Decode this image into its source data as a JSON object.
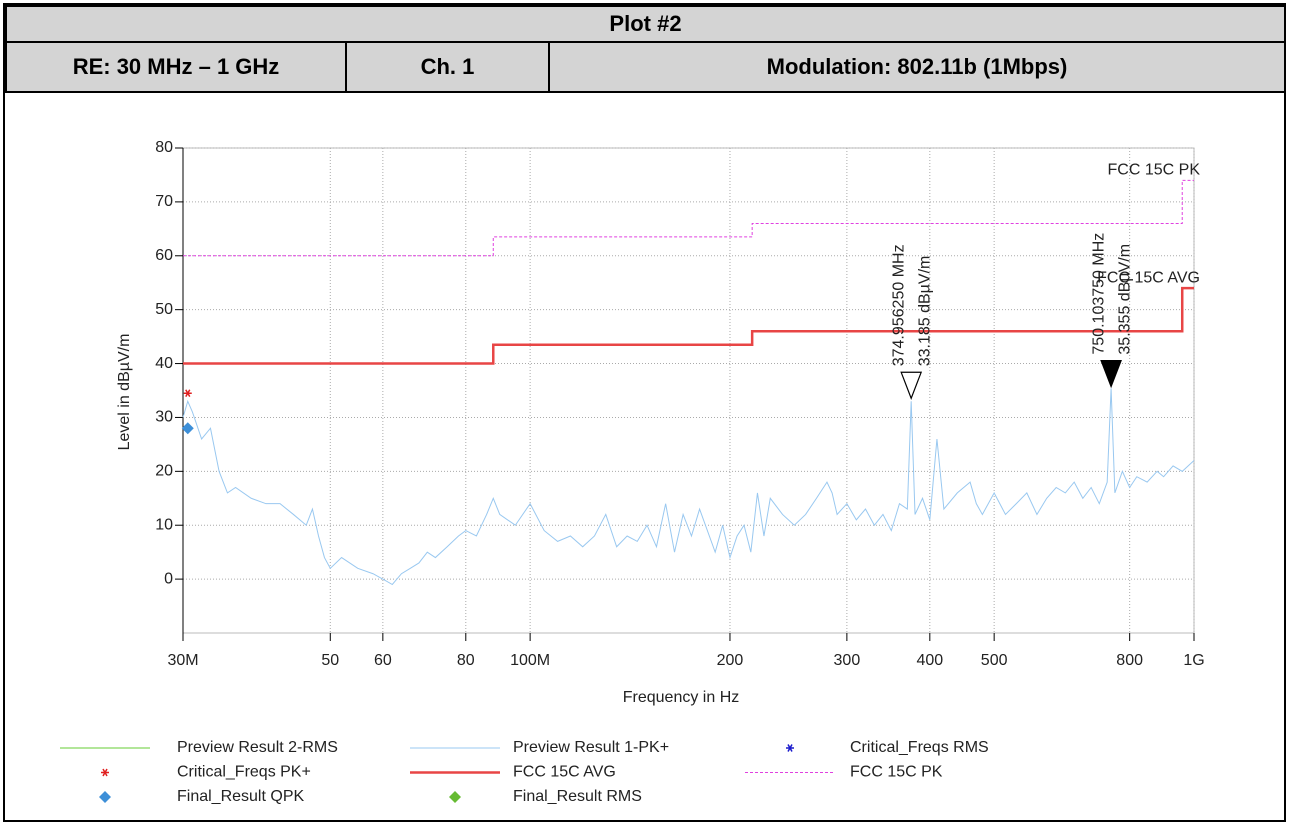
{
  "header": {
    "title": "Plot #2",
    "cells": [
      "RE: 30 MHz – 1 GHz",
      "Ch. 1",
      "Modulation: 802.11b (1Mbps)"
    ]
  },
  "chart_data": {
    "type": "line",
    "ylabel": "Level in dBµV/m",
    "xlabel": "Frequency in Hz",
    "xscale": "log",
    "grid": true,
    "xlim": [
      30000000,
      1000000000
    ],
    "xticks": [
      {
        "value": 30000000,
        "label": "30M"
      },
      {
        "value": 50000000,
        "label": "50"
      },
      {
        "value": 60000000,
        "label": "60"
      },
      {
        "value": 80000000,
        "label": "80"
      },
      {
        "value": 100000000,
        "label": "100M"
      },
      {
        "value": 200000000,
        "label": "200"
      },
      {
        "value": 300000000,
        "label": "300"
      },
      {
        "value": 400000000,
        "label": "400"
      },
      {
        "value": 500000000,
        "label": "500"
      },
      {
        "value": 800000000,
        "label": "800"
      },
      {
        "value": 1000000000,
        "label": "1G"
      }
    ],
    "ylim": [
      -10,
      80
    ],
    "yticks": [
      0,
      10,
      20,
      30,
      40,
      50,
      60,
      70,
      80
    ],
    "series": [
      {
        "name": "Preview Result 2-RMS",
        "color": "#66cc33",
        "style": "line",
        "x": [],
        "values": []
      },
      {
        "name": "Preview Result 1-PK+",
        "color": "#99c8f0",
        "style": "line",
        "x": [
          30000000,
          30500000,
          31000000,
          32000000,
          33000000,
          34000000,
          35000000,
          36000000,
          38000000,
          40000000,
          42000000,
          44000000,
          46000000,
          47000000,
          48000000,
          49000000,
          50000000,
          52000000,
          55000000,
          58000000,
          60000000,
          62000000,
          64000000,
          66000000,
          68000000,
          70000000,
          72000000,
          75000000,
          78000000,
          80000000,
          83000000,
          86000000,
          88000000,
          90000000,
          95000000,
          100000000,
          105000000,
          110000000,
          115000000,
          120000000,
          125000000,
          130000000,
          135000000,
          140000000,
          145000000,
          150000000,
          155000000,
          160000000,
          165000000,
          170000000,
          175000000,
          180000000,
          190000000,
          195000000,
          200000000,
          205000000,
          210000000,
          215000000,
          220000000,
          225000000,
          230000000,
          240000000,
          250000000,
          260000000,
          270000000,
          280000000,
          285000000,
          290000000,
          300000000,
          310000000,
          320000000,
          330000000,
          340000000,
          350000000,
          360000000,
          370000000,
          374956250,
          380000000,
          390000000,
          400000000,
          410000000,
          420000000,
          440000000,
          460000000,
          470000000,
          480000000,
          500000000,
          520000000,
          540000000,
          560000000,
          580000000,
          600000000,
          620000000,
          640000000,
          660000000,
          680000000,
          700000000,
          720000000,
          740000000,
          750103750,
          760000000,
          780000000,
          800000000,
          820000000,
          850000000,
          880000000,
          900000000,
          930000000,
          960000000,
          1000000000
        ],
        "values": [
          30,
          33,
          31,
          26,
          28,
          20,
          16,
          17,
          15,
          14,
          14,
          12,
          10,
          13,
          8,
          4,
          2,
          4,
          2,
          1,
          0,
          -1,
          1,
          2,
          3,
          5,
          4,
          6,
          8,
          9,
          8,
          12,
          15,
          12,
          10,
          14,
          9,
          7,
          8,
          6,
          8,
          12,
          6,
          8,
          7,
          10,
          6,
          14,
          5,
          12,
          8,
          13,
          5,
          10,
          4,
          8,
          10,
          5,
          16,
          8,
          15,
          12,
          10,
          12,
          15,
          18,
          16,
          12,
          14,
          11,
          13,
          10,
          12,
          9,
          14,
          13,
          33,
          12,
          15,
          11,
          26,
          13,
          16,
          18,
          14,
          12,
          16,
          12,
          14,
          16,
          12,
          15,
          17,
          16,
          18,
          15,
          17,
          14,
          18,
          35.4,
          16,
          20,
          17,
          19,
          18,
          20,
          19,
          21,
          20,
          22
        ]
      },
      {
        "name": "Critical_Freqs RMS",
        "color": "#1a1acc",
        "style": "asterisk",
        "x": [],
        "values": []
      },
      {
        "name": "Critical_Freqs PK+",
        "color": "#e02020",
        "style": "asterisk",
        "x": [
          30500000
        ],
        "values": [
          34.5
        ]
      },
      {
        "name": "FCC 15C AVG",
        "color": "#e84545",
        "style": "line",
        "width": 2.5,
        "x": [
          30000000,
          88000000,
          88000000,
          216000000,
          216000000,
          960000000,
          960000000,
          1000000000
        ],
        "values": [
          40,
          40,
          43.5,
          43.5,
          46,
          46,
          54,
          54
        ]
      },
      {
        "name": "FCC 15C PK",
        "color": "#e040e0",
        "style": "dash",
        "x": [
          30000000,
          88000000,
          88000000,
          216000000,
          216000000,
          960000000,
          960000000,
          1000000000
        ],
        "values": [
          60,
          60,
          63.5,
          63.5,
          66,
          66,
          74,
          74
        ]
      },
      {
        "name": "Final_Result QPK",
        "color": "#3d8fd8",
        "style": "diamond",
        "x": [
          30500000
        ],
        "values": [
          28
        ]
      },
      {
        "name": "Final_Result RMS",
        "color": "#66bb33",
        "style": "diamond",
        "x": [],
        "values": []
      }
    ],
    "markers": [
      {
        "x": 374956250,
        "value": 33.185,
        "freq_label": "374.956250 MHz",
        "level_label": "33.185 dBµV/m",
        "filled": false
      },
      {
        "x": 750103750,
        "value": 35.355,
        "freq_label": "750.103750 MHz",
        "level_label": "35.355 dBµV/m",
        "filled": true
      }
    ]
  }
}
